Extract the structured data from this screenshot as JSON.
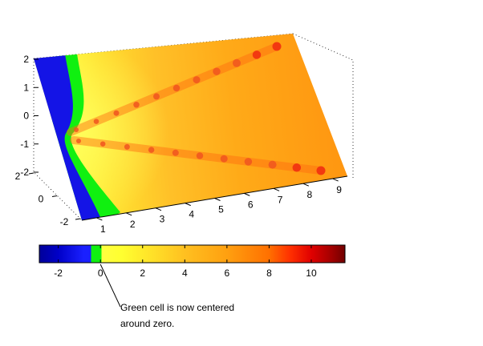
{
  "chart_data": [
    {
      "type": "surface",
      "title": "",
      "xlabel": "",
      "ylabel": "",
      "zlabel": "",
      "colormap": "jet (modified: green cell centered on zero)",
      "x_ticks": [
        "1",
        "2",
        "3",
        "4",
        "5",
        "6",
        "7",
        "8",
        "9"
      ],
      "y_ticks": [
        "-2",
        "0",
        "2"
      ],
      "z_ticks": [
        "-2",
        "-1",
        "0",
        "1",
        "2"
      ],
      "xlim": [
        0.5,
        9.5
      ],
      "ylim": [
        -2,
        2
      ],
      "zlim": [
        -2,
        2
      ],
      "view": "3-D, surface tilted toward viewer, color encodes value",
      "surface_colors": {
        "left_edge": "#1010e0",
        "zero_band": "#10ee10",
        "low": "#ffff30",
        "mid": "#ffb020",
        "high": "#ff8800",
        "ridge": "#f04020"
      },
      "ridges": [
        {
          "x": [
            1.2,
            3,
            5,
            7,
            9.2
          ],
          "value": [
            5,
            6.5,
            7.5,
            8.5,
            10
          ]
        },
        {
          "x": [
            1.2,
            3,
            5,
            7,
            9.2
          ],
          "value": [
            5,
            6.5,
            7.5,
            8.5,
            10
          ]
        }
      ]
    },
    {
      "type": "colorbar",
      "clim": [
        -2.9,
        11.6
      ],
      "ticks": [
        "-2",
        "0",
        "2",
        "4",
        "6",
        "8",
        "10"
      ],
      "tick_values": [
        -2,
        0,
        2,
        4,
        6,
        8,
        10
      ],
      "stops": [
        {
          "v": -2.9,
          "c": "#00009a"
        },
        {
          "v": -2.0,
          "c": "#0000c8"
        },
        {
          "v": -0.8,
          "c": "#1a20ff"
        },
        {
          "v": -0.45,
          "c": "#1a20ff"
        },
        {
          "v": -0.45,
          "c": "#10f010"
        },
        {
          "v": 0.05,
          "c": "#10f010"
        },
        {
          "v": 0.05,
          "c": "#ffff40"
        },
        {
          "v": 1.0,
          "c": "#ffff30"
        },
        {
          "v": 2.5,
          "c": "#ffe028"
        },
        {
          "v": 4.0,
          "c": "#ffc020"
        },
        {
          "v": 6.0,
          "c": "#ffa010"
        },
        {
          "v": 8.0,
          "c": "#ff7000"
        },
        {
          "v": 9.0,
          "c": "#ff3000"
        },
        {
          "v": 10.0,
          "c": "#e00000"
        },
        {
          "v": 11.0,
          "c": "#a00000"
        },
        {
          "v": 11.6,
          "c": "#700000"
        }
      ]
    }
  ],
  "annotation": {
    "line1": "Green cell is now centered",
    "line2": "around zero.",
    "target_value": 0
  }
}
